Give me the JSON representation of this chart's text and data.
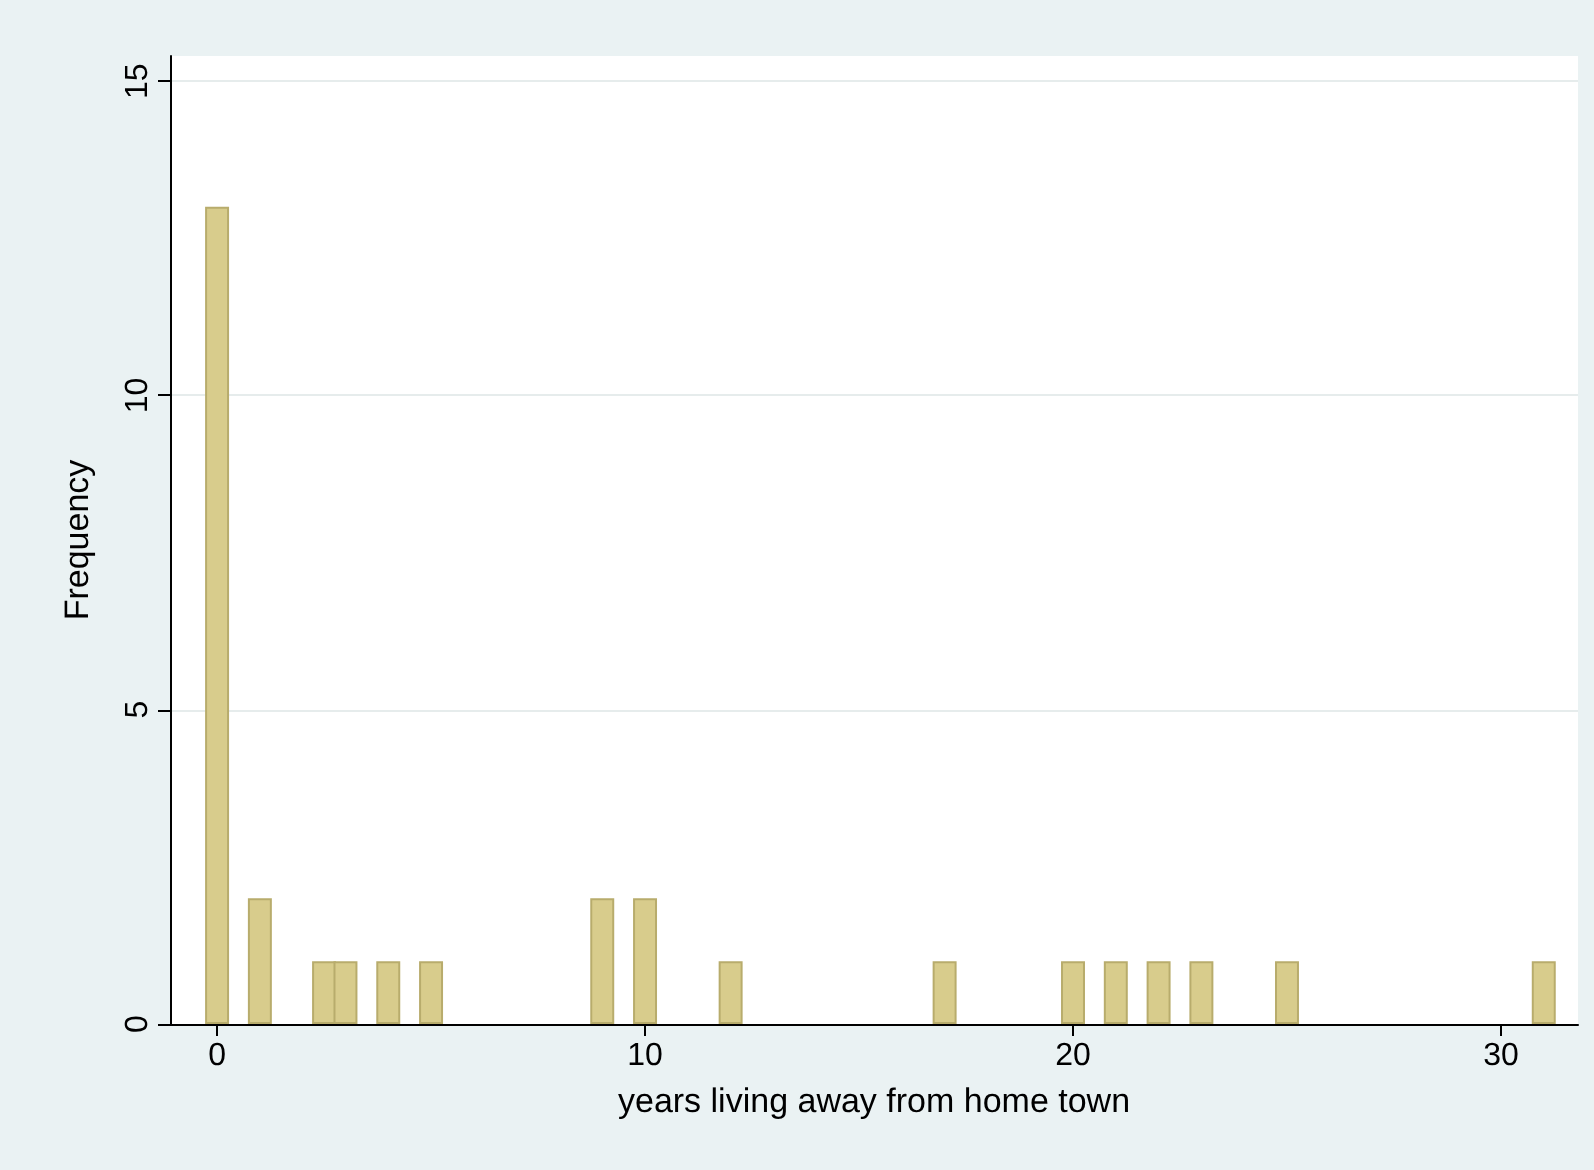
{
  "chart_data": {
    "type": "bar",
    "xlabel": "years living away from home town",
    "ylabel": "Frequency",
    "x": [
      0,
      1,
      2.5,
      3,
      4,
      5,
      9,
      10,
      12,
      17,
      20,
      21,
      22,
      23,
      25,
      31
    ],
    "values": [
      13,
      2,
      1,
      1,
      1,
      1,
      2,
      2,
      1,
      1,
      1,
      1,
      1,
      1,
      1,
      1
    ],
    "color": "#d8cc8c",
    "xlim": [
      -1.1,
      31.8
    ],
    "xticks": [
      0,
      10,
      20,
      30
    ],
    "ylim": [
      0,
      15.4
    ],
    "yticks": [
      0,
      5,
      10,
      15
    ],
    "grid": "y"
  }
}
